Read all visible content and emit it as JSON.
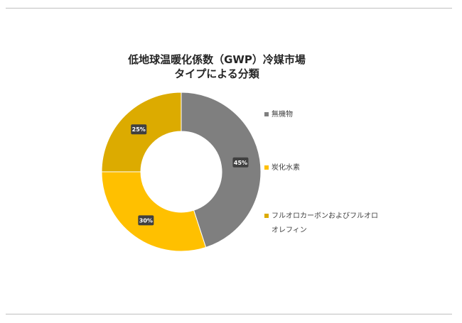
{
  "chart_data": {
    "type": "pie",
    "variant": "donut",
    "title_lines": [
      "低地球温暖化係数（GWP）冷媒市場",
      "タイプによる分類"
    ],
    "series": [
      {
        "name": "無機物",
        "value": 45,
        "label": "45%",
        "color": "#7f7f7f"
      },
      {
        "name": "炭化水素",
        "value": 30,
        "label": "30%",
        "color": "#ffc000"
      },
      {
        "name": "フルオロカーボンおよびフルオロオレフィン",
        "value": 25,
        "label": "25%",
        "color": "#dcab00"
      }
    ],
    "legend_position": "right",
    "data_label_style": "dark box, white bold text"
  }
}
